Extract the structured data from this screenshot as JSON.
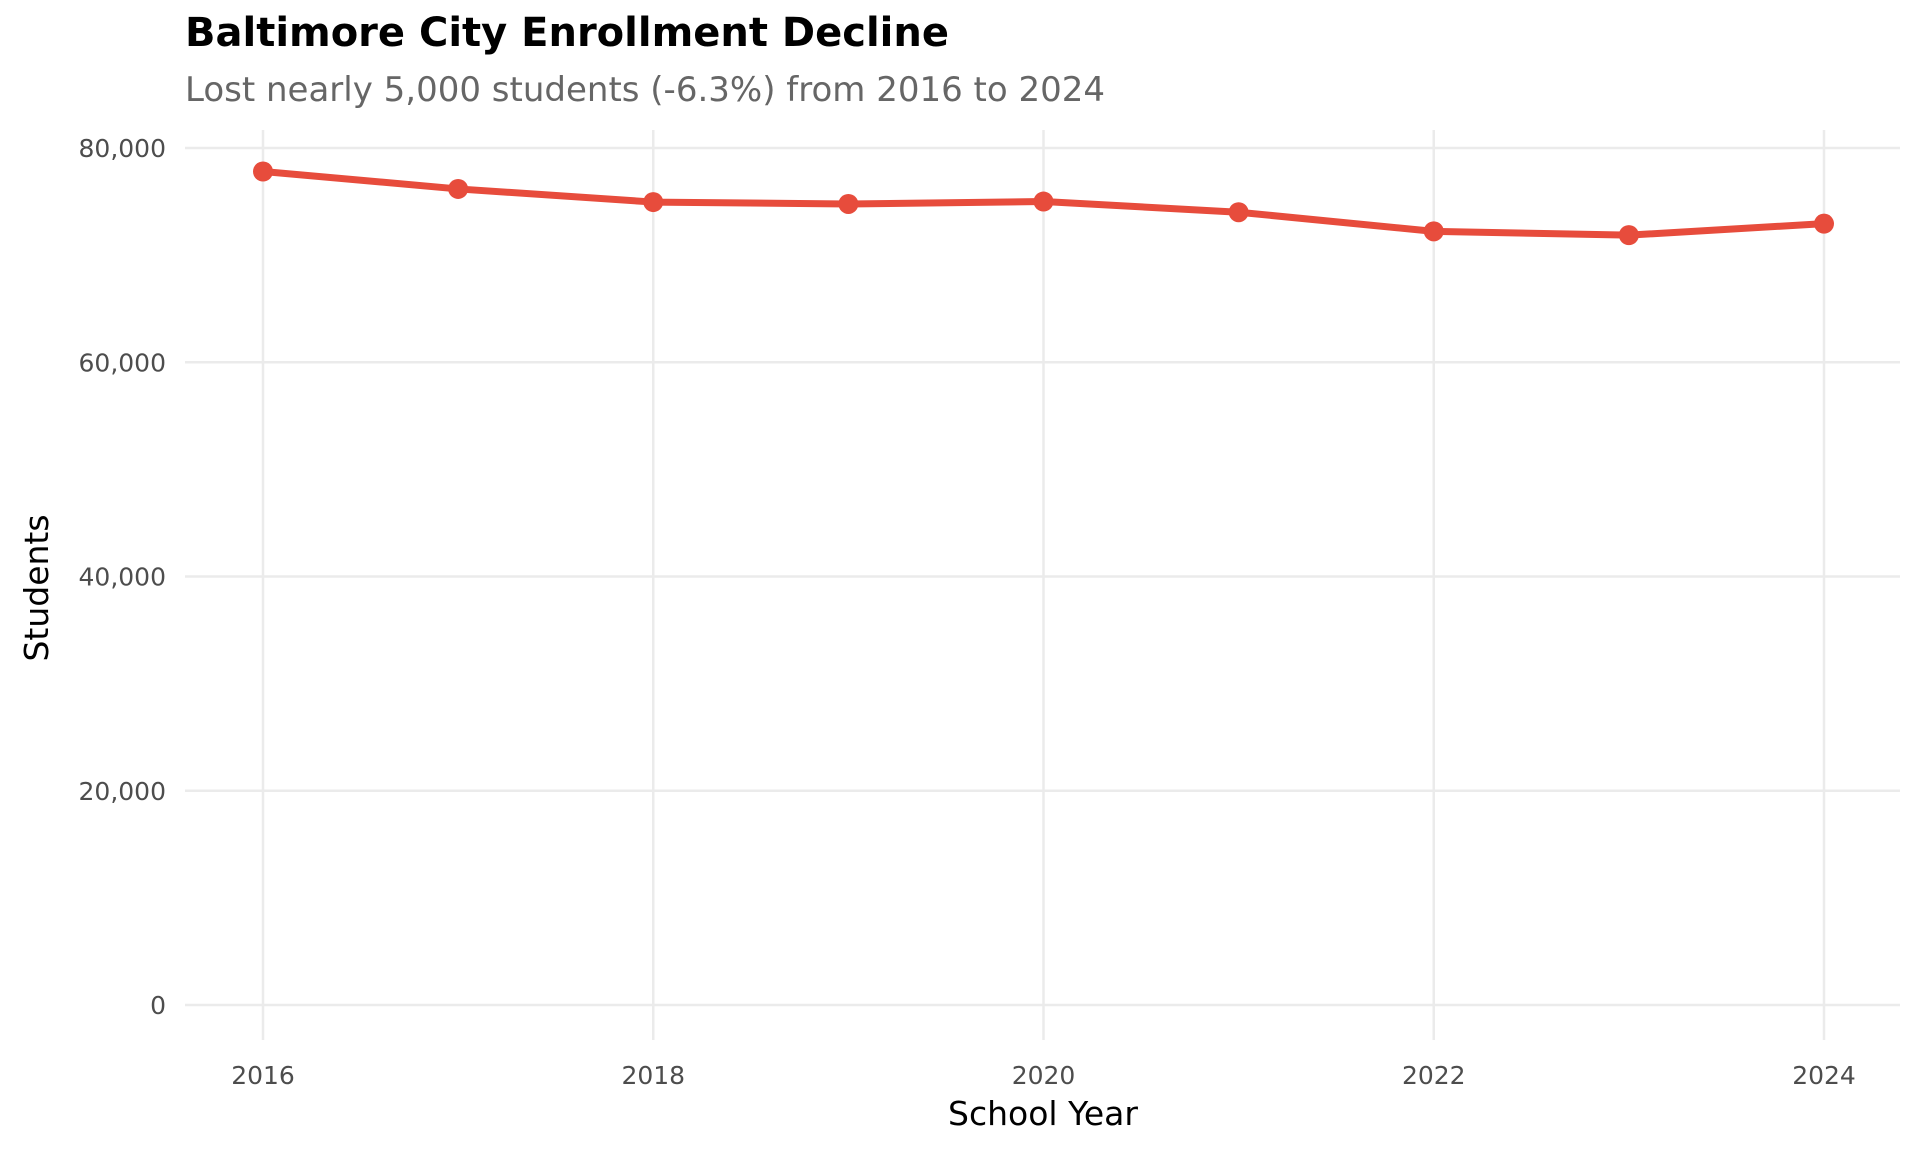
{
  "chart_data": {
    "type": "line",
    "title": "Baltimore City Enrollment Decline",
    "subtitle": "Lost nearly 5,000 students (-6.3%) from 2016 to 2024",
    "xlabel": "School Year",
    "ylabel": "Students",
    "x": [
      2016,
      2017,
      2018,
      2019,
      2020,
      2021,
      2022,
      2023,
      2024
    ],
    "series": [
      {
        "values": [
          77807,
          76178,
          74953,
          74776,
          75001,
          74005,
          72219,
          71867,
          72938
        ]
      }
    ],
    "xlim": [
      2015.8,
      2024.2
    ],
    "ylim": [
      0,
      80000
    ],
    "x_ticks": [
      "2016",
      "2018",
      "2020",
      "2022",
      "2024"
    ],
    "y_ticks": [
      "0",
      "20,000",
      "40,000",
      "60,000",
      "80,000"
    ],
    "grid": true,
    "legend": "none",
    "line_color": "#E74C3C",
    "grid_color": "#EBEBEB"
  }
}
